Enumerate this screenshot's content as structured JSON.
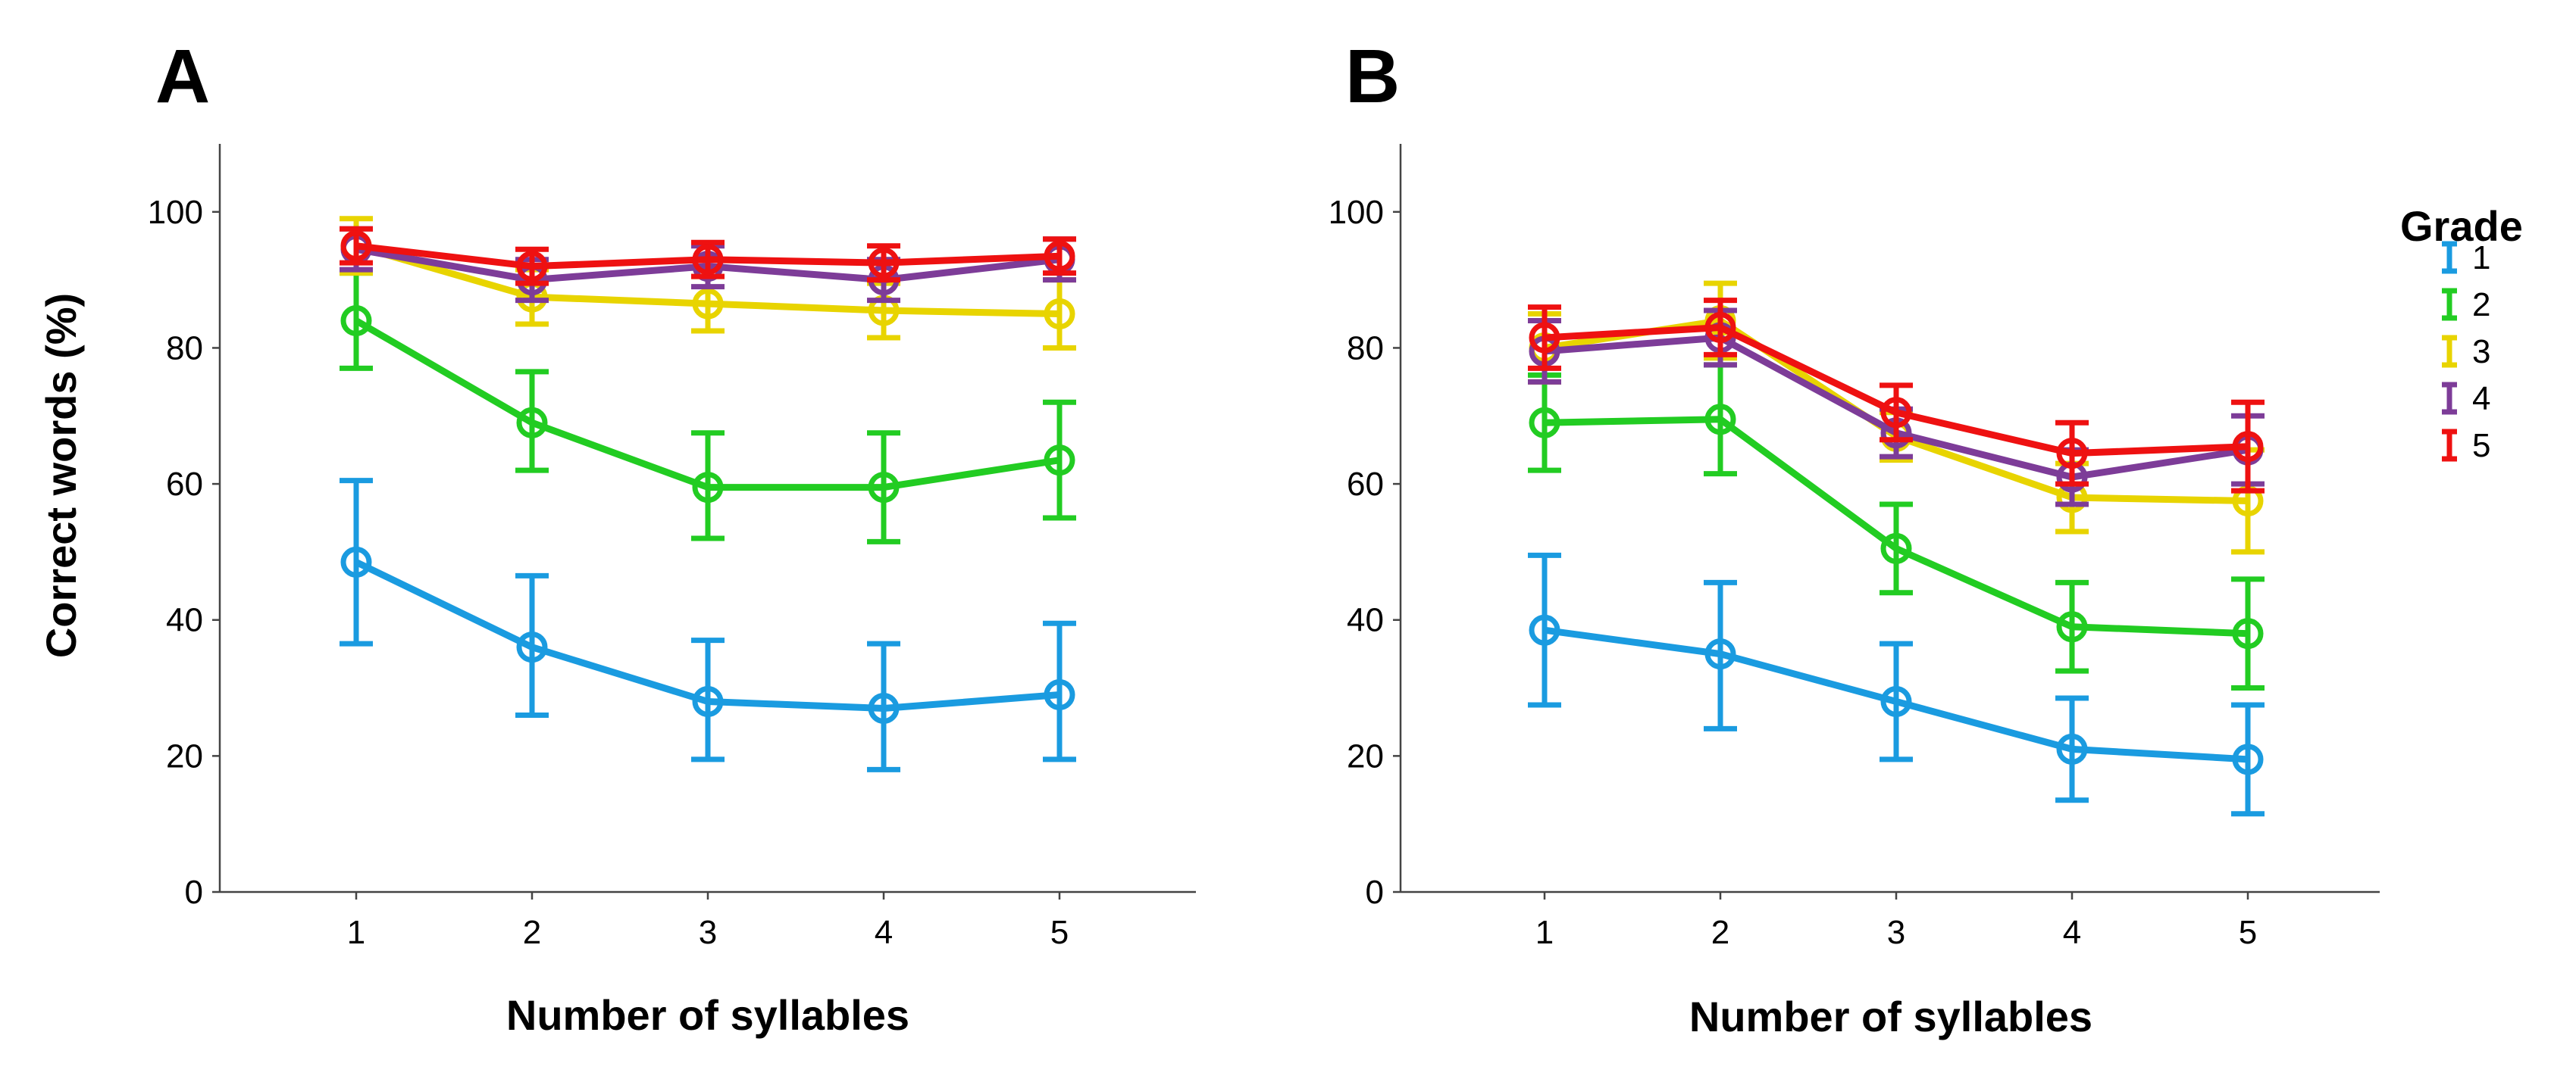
{
  "chart_data": [
    {
      "panel": "A",
      "type": "line",
      "xlabel": "Number of syllables",
      "ylabel": "Correct words (%)",
      "ylim": [
        0,
        110
      ],
      "yticks": [
        0,
        20,
        40,
        60,
        80,
        100
      ],
      "categories": [
        "1",
        "2",
        "3",
        "4",
        "5"
      ],
      "series": [
        {
          "name": "1",
          "color": "#1a9be0",
          "values": [
            48.5,
            36,
            28,
            27,
            29
          ],
          "err_low": [
            36.5,
            26,
            19.5,
            18,
            19.5
          ],
          "err_high": [
            60.5,
            46.5,
            37,
            36.5,
            39.5
          ]
        },
        {
          "name": "2",
          "color": "#22cc22",
          "values": [
            84,
            69,
            59.5,
            59.5,
            63.5
          ],
          "err_low": [
            77,
            62,
            52,
            51.5,
            55
          ],
          "err_high": [
            91,
            76.5,
            67.5,
            67.5,
            72
          ]
        },
        {
          "name": "3",
          "color": "#e8d400",
          "values": [
            95,
            87.5,
            86.5,
            85.5,
            85
          ],
          "err_low": [
            91,
            83.5,
            82.5,
            81.5,
            80
          ],
          "err_high": [
            99,
            91.5,
            90.5,
            89.5,
            90
          ]
        },
        {
          "name": "4",
          "color": "#7d3c98",
          "values": [
            94.5,
            90,
            92,
            90,
            93
          ],
          "err_low": [
            91.5,
            87,
            89,
            87,
            90
          ],
          "err_high": [
            97.5,
            93,
            95,
            93,
            96
          ]
        },
        {
          "name": "5",
          "color": "#ee1111",
          "values": [
            95,
            92,
            93,
            92.5,
            93.5
          ],
          "err_low": [
            92.5,
            89.5,
            90.5,
            90,
            91
          ],
          "err_high": [
            97.5,
            94.5,
            95.5,
            95,
            96
          ]
        }
      ]
    },
    {
      "panel": "B",
      "type": "line",
      "xlabel": "Number of syllables",
      "ylabel": "",
      "ylim": [
        0,
        110
      ],
      "yticks": [
        0,
        20,
        40,
        60,
        80,
        100
      ],
      "categories": [
        "1",
        "2",
        "3",
        "4",
        "5"
      ],
      "series": [
        {
          "name": "1",
          "color": "#1a9be0",
          "values": [
            38.5,
            35,
            28,
            21,
            19.5
          ],
          "err_low": [
            27.5,
            24,
            19.5,
            13.5,
            11.5
          ],
          "err_high": [
            49.5,
            45.5,
            36.5,
            28.5,
            27.5
          ]
        },
        {
          "name": "2",
          "color": "#22cc22",
          "values": [
            69,
            69.5,
            50.5,
            39,
            38
          ],
          "err_low": [
            62,
            61.5,
            44,
            32.5,
            30
          ],
          "err_high": [
            76,
            77.5,
            57,
            45.5,
            46
          ]
        },
        {
          "name": "3",
          "color": "#e8d400",
          "values": [
            80,
            84,
            67,
            58,
            57.5
          ],
          "err_low": [
            75,
            78.5,
            63.5,
            53,
            50
          ],
          "err_high": [
            85,
            89.5,
            70.5,
            63,
            65
          ]
        },
        {
          "name": "4",
          "color": "#7d3c98",
          "values": [
            79.5,
            81.5,
            67.5,
            61,
            65
          ],
          "err_low": [
            75,
            77.5,
            64,
            57,
            60
          ],
          "err_high": [
            84,
            85.5,
            71,
            65,
            70
          ]
        },
        {
          "name": "5",
          "color": "#ee1111",
          "values": [
            81.5,
            83,
            70.5,
            64.5,
            65.5
          ],
          "err_low": [
            77,
            79,
            66.5,
            60,
            59
          ],
          "err_high": [
            86,
            87,
            74.5,
            69,
            72
          ]
        }
      ]
    }
  ],
  "legend": {
    "title": "Grade",
    "items": [
      {
        "label": "1",
        "color": "#1a9be0"
      },
      {
        "label": "2",
        "color": "#22cc22"
      },
      {
        "label": "3",
        "color": "#e8d400"
      },
      {
        "label": "4",
        "color": "#7d3c98"
      },
      {
        "label": "5",
        "color": "#ee1111"
      }
    ]
  }
}
